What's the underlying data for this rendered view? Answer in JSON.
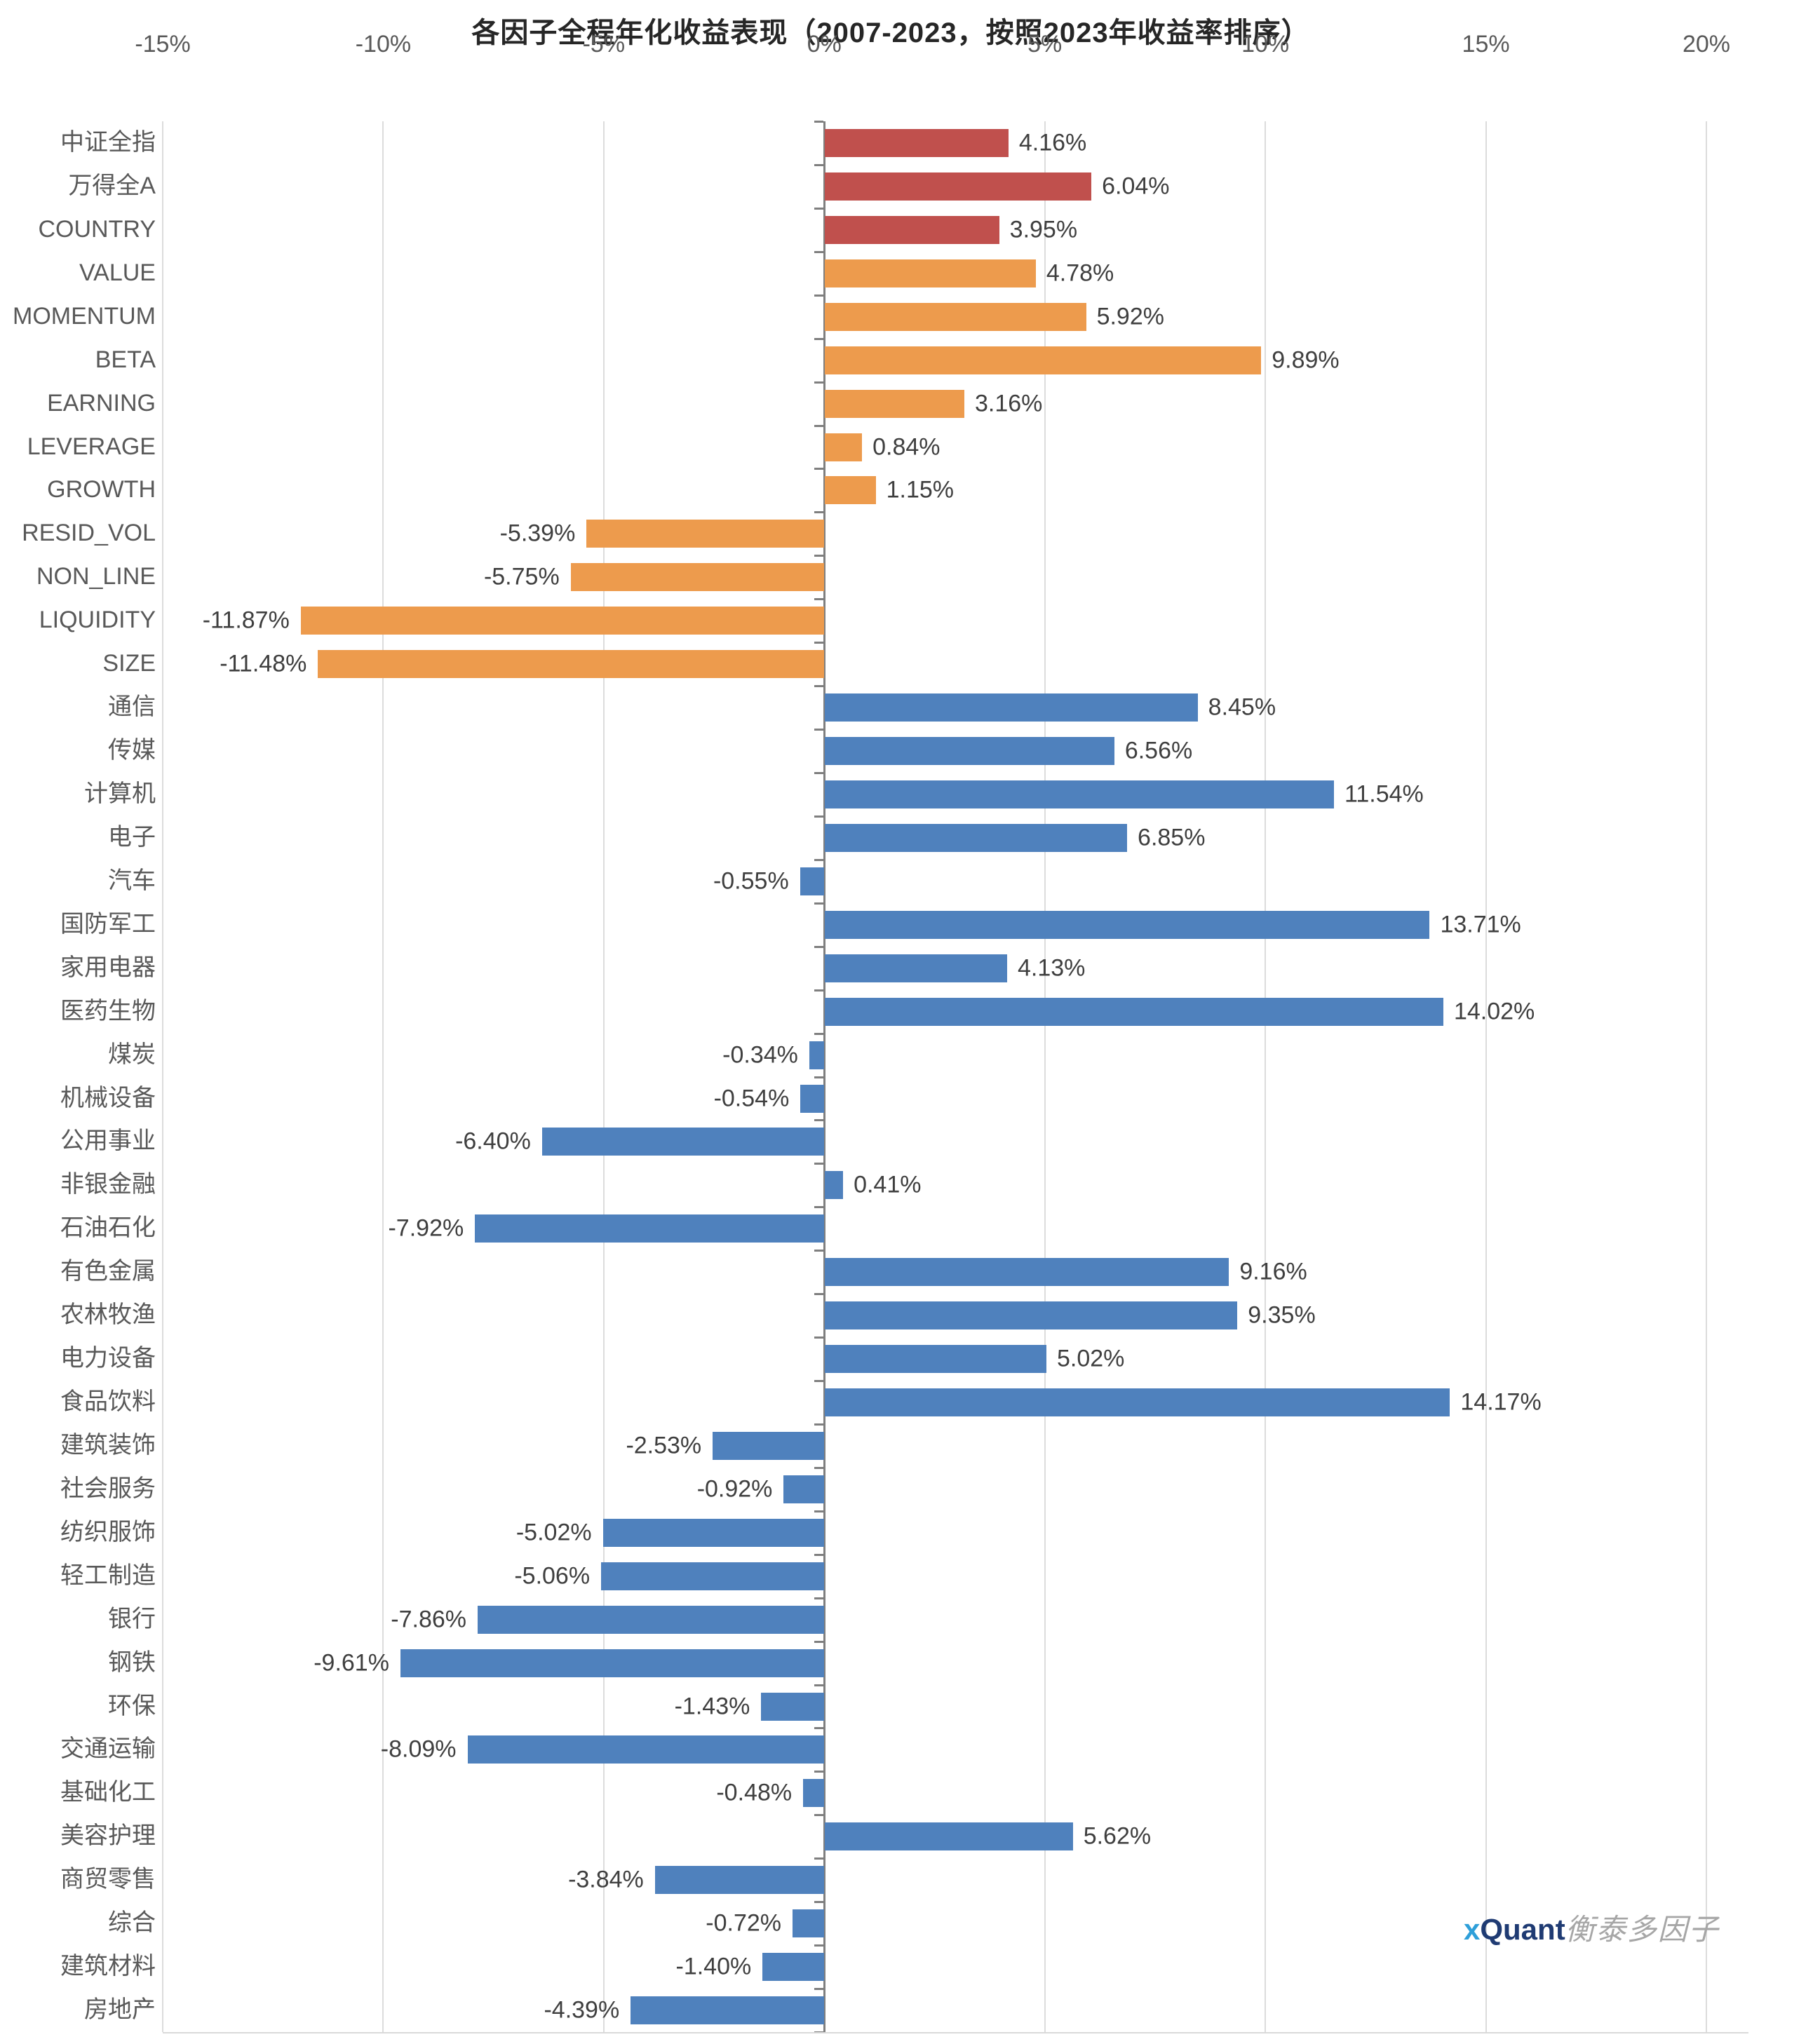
{
  "title": "各因子全程年化收益表现（2007-2023，按照2023年收益率排序）",
  "watermark": {
    "x": "x",
    "quant": "Quant",
    "cjk": "衡泰多因子",
    "x_color": "#2e9fd9",
    "quant_color": "#1f3b73",
    "cjk_color": "#a6a6a6"
  },
  "chart_data": {
    "type": "bar",
    "orientation": "horizontal",
    "title": "各因子全程年化收益表现（2007-2023，按照2023年收益率排序）",
    "xlabel": "",
    "ylabel": "",
    "x_axis": {
      "min": -15,
      "max": 20,
      "step": 5,
      "position": "top",
      "unit": "%",
      "tick_labels": [
        "-15%",
        "-10%",
        "-5%",
        "0%",
        "5%",
        "10%",
        "15%",
        "20%"
      ]
    },
    "grid": true,
    "legend": "none",
    "groups": [
      {
        "name": "benchmark",
        "color": "#c0504d"
      },
      {
        "name": "style_factor",
        "color": "#ed9b4d"
      },
      {
        "name": "industry",
        "color": "#4f81bd"
      }
    ],
    "bars": [
      {
        "category": "中证全指",
        "value": 4.16,
        "label": "4.16%",
        "group": "benchmark"
      },
      {
        "category": "万得全A",
        "value": 6.04,
        "label": "6.04%",
        "group": "benchmark"
      },
      {
        "category": "COUNTRY",
        "value": 3.95,
        "label": "3.95%",
        "group": "benchmark"
      },
      {
        "category": "VALUE",
        "value": 4.78,
        "label": "4.78%",
        "group": "style_factor"
      },
      {
        "category": "MOMENTUM",
        "value": 5.92,
        "label": "5.92%",
        "group": "style_factor"
      },
      {
        "category": "BETA",
        "value": 9.89,
        "label": "9.89%",
        "group": "style_factor"
      },
      {
        "category": "EARNING",
        "value": 3.16,
        "label": "3.16%",
        "group": "style_factor"
      },
      {
        "category": "LEVERAGE",
        "value": 0.84,
        "label": "0.84%",
        "group": "style_factor"
      },
      {
        "category": "GROWTH",
        "value": 1.15,
        "label": "1.15%",
        "group": "style_factor"
      },
      {
        "category": "RESID_VOL",
        "value": -5.39,
        "label": "-5.39%",
        "group": "style_factor"
      },
      {
        "category": "NON_LINE",
        "value": -5.75,
        "label": "-5.75%",
        "group": "style_factor"
      },
      {
        "category": "LIQUIDITY",
        "value": -11.87,
        "label": "-11.87%",
        "group": "style_factor"
      },
      {
        "category": "SIZE",
        "value": -11.48,
        "label": "-11.48%",
        "group": "style_factor"
      },
      {
        "category": "通信",
        "value": 8.45,
        "label": "8.45%",
        "group": "industry"
      },
      {
        "category": "传媒",
        "value": 6.56,
        "label": "6.56%",
        "group": "industry"
      },
      {
        "category": "计算机",
        "value": 11.54,
        "label": "11.54%",
        "group": "industry"
      },
      {
        "category": "电子",
        "value": 6.85,
        "label": "6.85%",
        "group": "industry"
      },
      {
        "category": "汽车",
        "value": -0.55,
        "label": "-0.55%",
        "group": "industry"
      },
      {
        "category": "国防军工",
        "value": 13.71,
        "label": "13.71%",
        "group": "industry"
      },
      {
        "category": "家用电器",
        "value": 4.13,
        "label": "4.13%",
        "group": "industry"
      },
      {
        "category": "医药生物",
        "value": 14.02,
        "label": "14.02%",
        "group": "industry"
      },
      {
        "category": "煤炭",
        "value": -0.34,
        "label": "-0.34%",
        "group": "industry"
      },
      {
        "category": "机械设备",
        "value": -0.54,
        "label": "-0.54%",
        "group": "industry"
      },
      {
        "category": "公用事业",
        "value": -6.4,
        "label": "-6.40%",
        "group": "industry"
      },
      {
        "category": "非银金融",
        "value": 0.41,
        "label": "0.41%",
        "group": "industry"
      },
      {
        "category": "石油石化",
        "value": -7.92,
        "label": "-7.92%",
        "group": "industry"
      },
      {
        "category": "有色金属",
        "value": 9.16,
        "label": "9.16%",
        "group": "industry"
      },
      {
        "category": "农林牧渔",
        "value": 9.35,
        "label": "9.35%",
        "group": "industry"
      },
      {
        "category": "电力设备",
        "value": 5.02,
        "label": "5.02%",
        "group": "industry"
      },
      {
        "category": "食品饮料",
        "value": 14.17,
        "label": "14.17%",
        "group": "industry"
      },
      {
        "category": "建筑装饰",
        "value": -2.53,
        "label": "-2.53%",
        "group": "industry"
      },
      {
        "category": "社会服务",
        "value": -0.92,
        "label": "-0.92%",
        "group": "industry"
      },
      {
        "category": "纺织服饰",
        "value": -5.02,
        "label": "-5.02%",
        "group": "industry"
      },
      {
        "category": "轻工制造",
        "value": -5.06,
        "label": "-5.06%",
        "group": "industry"
      },
      {
        "category": "银行",
        "value": -7.86,
        "label": "-7.86%",
        "group": "industry"
      },
      {
        "category": "钢铁",
        "value": -9.61,
        "label": "-9.61%",
        "group": "industry"
      },
      {
        "category": "环保",
        "value": -1.43,
        "label": "-1.43%",
        "group": "industry"
      },
      {
        "category": "交通运输",
        "value": -8.09,
        "label": "-8.09%",
        "group": "industry"
      },
      {
        "category": "基础化工",
        "value": -0.48,
        "label": "-0.48%",
        "group": "industry"
      },
      {
        "category": "美容护理",
        "value": 5.62,
        "label": "5.62%",
        "group": "industry"
      },
      {
        "category": "商贸零售",
        "value": -3.84,
        "label": "-3.84%",
        "group": "industry"
      },
      {
        "category": "综合",
        "value": -0.72,
        "label": "-0.72%",
        "group": "industry"
      },
      {
        "category": "建筑材料",
        "value": -1.4,
        "label": "-1.40%",
        "group": "industry"
      },
      {
        "category": "房地产",
        "value": -4.39,
        "label": "-4.39%",
        "group": "industry"
      }
    ]
  }
}
